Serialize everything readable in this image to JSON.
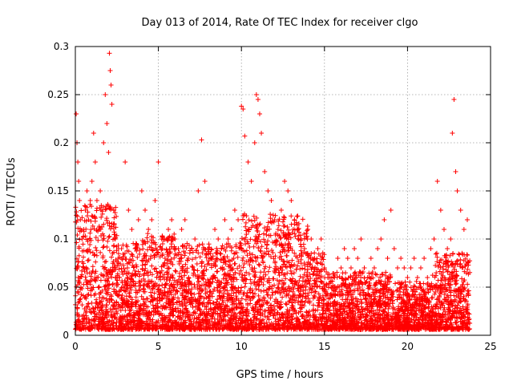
{
  "chart_data": {
    "type": "scatter",
    "title": "Day 013 of 2014, Rate Of TEC Index for receiver clgo",
    "xlabel": "GPS time / hours",
    "ylabel": "ROTI / TECUs",
    "xlim": [
      0,
      25
    ],
    "ylim": [
      0,
      0.3
    ],
    "xticks": [
      0,
      5,
      10,
      15,
      20,
      25
    ],
    "yticks": [
      0,
      0.05,
      0.1,
      0.15,
      0.2,
      0.25,
      0.3
    ],
    "xtick_labels": [
      "0",
      "5",
      "10",
      "15",
      "20",
      "25"
    ],
    "ytick_labels": [
      "0",
      "0.05",
      "0.1",
      "0.15",
      "0.2",
      "0.25",
      "0.3"
    ],
    "grid": true,
    "marker": "+",
    "series": [
      {
        "name": "ROTI",
        "color": "#ff0000",
        "note": "dense cloud of points between 0 and 23.7 hours; representative sample below",
        "x": [
          0.05,
          0.1,
          0.15,
          0.2,
          0.25,
          0.3,
          0.4,
          0.5,
          0.6,
          0.7,
          0.8,
          0.9,
          1.0,
          1.1,
          1.2,
          1.3,
          1.5,
          1.7,
          1.8,
          1.9,
          2.0,
          2.05,
          2.1,
          2.15,
          2.2,
          2.4,
          2.6,
          2.8,
          3.0,
          3.2,
          3.4,
          3.6,
          3.8,
          4.0,
          4.2,
          4.4,
          4.6,
          4.8,
          5.0,
          5.2,
          5.4,
          5.6,
          5.8,
          6.0,
          6.2,
          6.4,
          6.6,
          6.8,
          7.0,
          7.2,
          7.4,
          7.6,
          7.8,
          8.0,
          8.2,
          8.4,
          8.6,
          8.8,
          9.0,
          9.2,
          9.4,
          9.6,
          9.8,
          10.0,
          10.1,
          10.2,
          10.4,
          10.6,
          10.8,
          10.9,
          11.0,
          11.1,
          11.2,
          11.4,
          11.6,
          11.8,
          12.0,
          12.2,
          12.4,
          12.6,
          12.8,
          13.0,
          13.2,
          13.4,
          13.6,
          13.8,
          14.0,
          14.2,
          14.4,
          14.6,
          14.8,
          15.0,
          15.2,
          15.4,
          15.6,
          15.8,
          16.0,
          16.2,
          16.4,
          16.6,
          16.8,
          17.0,
          17.2,
          17.4,
          17.6,
          17.8,
          18.0,
          18.2,
          18.4,
          18.6,
          18.8,
          19.0,
          19.2,
          19.4,
          19.6,
          19.8,
          20.0,
          20.2,
          20.4,
          20.6,
          20.8,
          21.0,
          21.2,
          21.4,
          21.6,
          21.8,
          22.0,
          22.2,
          22.4,
          22.6,
          22.7,
          22.8,
          22.9,
          23.0,
          23.2,
          23.4,
          23.6
        ],
        "y": [
          0.23,
          0.2,
          0.18,
          0.16,
          0.14,
          0.12,
          0.1,
          0.11,
          0.13,
          0.15,
          0.12,
          0.14,
          0.16,
          0.21,
          0.18,
          0.14,
          0.15,
          0.2,
          0.25,
          0.22,
          0.19,
          0.293,
          0.275,
          0.26,
          0.24,
          0.1,
          0.09,
          0.08,
          0.18,
          0.13,
          0.11,
          0.09,
          0.12,
          0.15,
          0.13,
          0.11,
          0.12,
          0.14,
          0.18,
          0.1,
          0.08,
          0.11,
          0.12,
          0.1,
          0.09,
          0.11,
          0.12,
          0.08,
          0.09,
          0.1,
          0.15,
          0.203,
          0.16,
          0.09,
          0.08,
          0.11,
          0.1,
          0.09,
          0.12,
          0.1,
          0.11,
          0.13,
          0.12,
          0.238,
          0.235,
          0.207,
          0.18,
          0.16,
          0.2,
          0.25,
          0.245,
          0.23,
          0.21,
          0.17,
          0.15,
          0.14,
          0.12,
          0.11,
          0.13,
          0.16,
          0.15,
          0.14,
          0.12,
          0.11,
          0.1,
          0.09,
          0.11,
          0.1,
          0.08,
          0.09,
          0.1,
          0.07,
          0.06,
          0.05,
          0.06,
          0.08,
          0.07,
          0.09,
          0.08,
          0.07,
          0.09,
          0.08,
          0.1,
          0.07,
          0.06,
          0.08,
          0.07,
          0.09,
          0.1,
          0.12,
          0.08,
          0.13,
          0.09,
          0.07,
          0.08,
          0.07,
          0.06,
          0.07,
          0.08,
          0.06,
          0.07,
          0.08,
          0.06,
          0.09,
          0.1,
          0.16,
          0.13,
          0.11,
          0.09,
          0.1,
          0.21,
          0.245,
          0.17,
          0.15,
          0.13,
          0.11,
          0.12
        ]
      }
    ]
  }
}
